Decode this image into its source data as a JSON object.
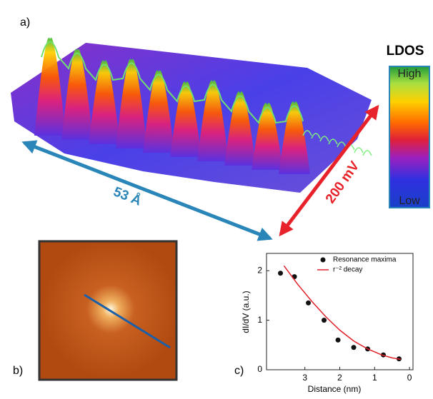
{
  "figure": {
    "panel_a": {
      "label": "a)",
      "colorbar_title": "LDOS",
      "colorbar_high": "High",
      "colorbar_low": "Low",
      "width_label": "53 Å",
      "energy_label": "200 mV"
    },
    "panel_b": {
      "label": "b)"
    },
    "panel_c": {
      "label": "c)"
    }
  },
  "chart_data": {
    "type": "scatter",
    "xlabel": "Distance (nm)",
    "ylabel": "dI/dV (a.u.)",
    "xlim": [
      4.1,
      -0.1
    ],
    "ylim": [
      0,
      2.35
    ],
    "xticks": [
      3,
      2,
      1,
      0
    ],
    "yticks": [
      0,
      1,
      2
    ],
    "legend": "upper right",
    "series": [
      {
        "name": "Resonance maxima",
        "type": "scatter",
        "color": "#111111",
        "x": [
          3.7,
          3.3,
          2.9,
          2.45,
          2.05,
          1.6,
          1.2,
          0.75,
          0.3
        ],
        "values": [
          1.95,
          1.88,
          1.35,
          1.0,
          0.6,
          0.45,
          0.42,
          0.3,
          0.22
        ]
      },
      {
        "name": "r⁻² decay",
        "type": "line",
        "color": "#e0202a",
        "x": [
          3.6,
          3.2,
          2.8,
          2.4,
          2.0,
          1.6,
          1.2,
          0.8,
          0.5,
          0.25
        ],
        "values": [
          2.1,
          1.72,
          1.38,
          1.07,
          0.8,
          0.58,
          0.42,
          0.3,
          0.24,
          0.21
        ]
      }
    ]
  }
}
